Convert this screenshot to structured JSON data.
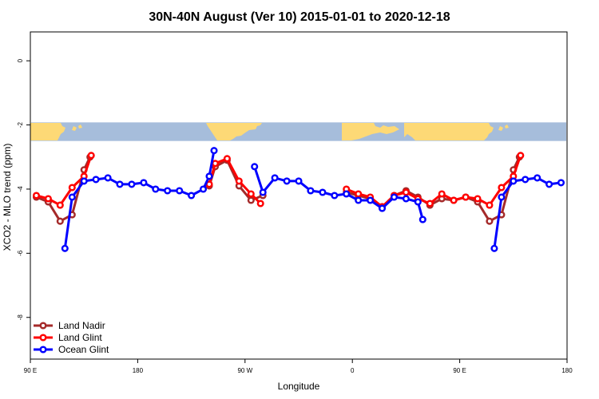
{
  "chart_data": {
    "type": "line",
    "title": "30N-40N August (Ver 10)   2015-01-01 to 2020-12-18",
    "xlabel": "Longitude",
    "ylabel": "XCO2 - MLO trend (ppm)",
    "xlim": [
      0,
      450
    ],
    "ylim": [
      -9.3,
      0.9
    ],
    "x_ticks": [
      {
        "value": 0,
        "label": "90 E"
      },
      {
        "value": 90,
        "label": "180"
      },
      {
        "value": 180,
        "label": "90 W"
      },
      {
        "value": 270,
        "label": "0"
      },
      {
        "value": 360,
        "label": "90 E"
      },
      {
        "value": 450,
        "label": "180"
      }
    ],
    "y_ticks": [
      {
        "value": 0,
        "label": "0"
      },
      {
        "value": -2,
        "label": "-2"
      },
      {
        "value": -4,
        "label": "-4"
      },
      {
        "value": -6,
        "label": "-6"
      },
      {
        "value": -8,
        "label": "-8"
      }
    ],
    "map_strip": {
      "y_top": -1.92,
      "y_bottom": -2.5,
      "land_color": "#fdd976",
      "ocean_color": "#a6bddb"
    },
    "series": [
      {
        "name": "Land Nadir",
        "color": "#a52a2a",
        "segments": [
          [
            [
              5,
              -4.25
            ],
            [
              15,
              -4.4
            ],
            [
              25,
              -5.0
            ],
            [
              35,
              -4.8
            ],
            [
              45,
              -3.4
            ],
            [
              50,
              -3.0
            ]
          ],
          [
            [
              150,
              -3.9
            ],
            [
              155,
              -3.3
            ],
            [
              165,
              -3.1
            ],
            [
              175,
              -3.9
            ],
            [
              185,
              -4.35
            ],
            [
              195,
              -4.2
            ]
          ],
          [
            [
              265,
              -4.1
            ],
            [
              275,
              -4.2
            ],
            [
              285,
              -4.3
            ],
            [
              295,
              -4.55
            ],
            [
              305,
              -4.2
            ],
            [
              315,
              -4.05
            ],
            [
              325,
              -4.25
            ],
            [
              335,
              -4.5
            ],
            [
              345,
              -4.3
            ],
            [
              355,
              -4.35
            ],
            [
              365,
              -4.25
            ],
            [
              375,
              -4.4
            ],
            [
              385,
              -5.0
            ],
            [
              395,
              -4.8
            ],
            [
              405,
              -3.4
            ],
            [
              410,
              -3.0
            ]
          ]
        ]
      },
      {
        "name": "Land Glint",
        "color": "#ff0000",
        "segments": [
          [
            [
              5,
              -4.2
            ],
            [
              15,
              -4.3
            ],
            [
              25,
              -4.5
            ],
            [
              35,
              -3.95
            ],
            [
              45,
              -3.6
            ],
            [
              51,
              -2.95
            ]
          ],
          [
            [
              150,
              -3.85
            ],
            [
              155,
              -3.2
            ],
            [
              165,
              -3.05
            ],
            [
              175,
              -3.75
            ],
            [
              185,
              -4.15
            ],
            [
              193,
              -4.45
            ]
          ],
          [
            [
              265,
              -4.0
            ],
            [
              275,
              -4.15
            ],
            [
              285,
              -4.25
            ],
            [
              295,
              -4.55
            ],
            [
              305,
              -4.2
            ],
            [
              315,
              -4.1
            ],
            [
              325,
              -4.3
            ],
            [
              335,
              -4.45
            ],
            [
              345,
              -4.15
            ],
            [
              355,
              -4.35
            ],
            [
              365,
              -4.25
            ],
            [
              375,
              -4.3
            ],
            [
              385,
              -4.5
            ],
            [
              395,
              -3.95
            ],
            [
              405,
              -3.6
            ],
            [
              411,
              -2.95
            ]
          ]
        ]
      },
      {
        "name": "Ocean Glint",
        "color": "#0000ff",
        "segments": [
          [
            [
              29,
              -5.85
            ],
            [
              35,
              -4.25
            ],
            [
              45,
              -3.75
            ],
            [
              55,
              -3.7
            ],
            [
              65,
              -3.65
            ],
            [
              75,
              -3.85
            ],
            [
              85,
              -3.85
            ],
            [
              95,
              -3.8
            ],
            [
              105,
              -4.0
            ],
            [
              115,
              -4.05
            ],
            [
              125,
              -4.05
            ],
            [
              135,
              -4.2
            ],
            [
              145,
              -4.0
            ],
            [
              150,
              -3.6
            ],
            [
              154,
              -2.8
            ]
          ],
          [
            [
              188,
              -3.3
            ],
            [
              195,
              -4.1
            ],
            [
              205,
              -3.65
            ],
            [
              215,
              -3.75
            ],
            [
              225,
              -3.75
            ],
            [
              235,
              -4.05
            ],
            [
              245,
              -4.1
            ],
            [
              255,
              -4.2
            ],
            [
              265,
              -4.15
            ],
            [
              275,
              -4.35
            ],
            [
              285,
              -4.35
            ],
            [
              295,
              -4.6
            ],
            [
              305,
              -4.25
            ],
            [
              315,
              -4.3
            ],
            [
              325,
              -4.4
            ],
            [
              329,
              -4.95
            ]
          ],
          [
            [
              389,
              -5.85
            ],
            [
              395,
              -4.25
            ],
            [
              405,
              -3.75
            ],
            [
              415,
              -3.7
            ],
            [
              425,
              -3.65
            ],
            [
              435,
              -3.85
            ],
            [
              445,
              -3.8
            ]
          ]
        ]
      }
    ],
    "legend": {
      "position": "bottom-left",
      "items": [
        "Land Nadir",
        "Land Glint",
        "Ocean Glint"
      ]
    }
  }
}
